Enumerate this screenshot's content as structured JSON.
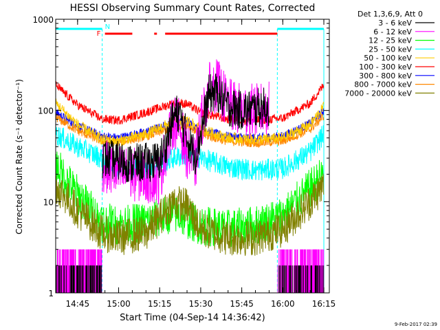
{
  "chart_data": {
    "type": "line",
    "title": "HESSI Observing Summary Count Rates, Corrected",
    "xlabel": "Start Time (04-Sep-14 14:36:42)",
    "ylabel": "Corrected Count Rate (s⁻¹ detector⁻¹)",
    "yscale": "log",
    "ylim": [
      1,
      1000
    ],
    "xlim": [
      "14:37",
      "16:17"
    ],
    "x_ticks": [
      "14:45",
      "15:00",
      "15:15",
      "15:30",
      "15:45",
      "16:00",
      "16:15"
    ],
    "y_ticks": [
      "1",
      "10",
      "100",
      "1000"
    ],
    "legend_title": "Det 1,3,6,9, Att 0",
    "legend_position": "top-right outside",
    "timestamp": "9-Feb-2017 02:39",
    "annotations": {
      "night_label": "N",
      "flare_label": "F"
    },
    "night_intervals": [
      [
        "14:37",
        "14:54"
      ],
      [
        "15:58",
        "16:15"
      ]
    ],
    "flare_intervals": [
      [
        "14:55",
        "15:05"
      ],
      [
        "15:13",
        "15:14"
      ],
      [
        "15:17",
        "15:58"
      ]
    ],
    "series": [
      {
        "name": "3 - 6 keV",
        "color": "#000000",
        "x": [
          "14:54",
          "15:00",
          "15:05",
          "15:10",
          "15:15",
          "15:17",
          "15:20",
          "15:22",
          "15:25",
          "15:28",
          "15:30",
          "15:33",
          "15:36",
          "15:40",
          "15:45",
          "15:50",
          "15:55"
        ],
        "values": [
          30,
          28,
          26,
          27,
          28,
          40,
          85,
          95,
          50,
          32,
          55,
          150,
          160,
          110,
          100,
          105,
          110
        ]
      },
      {
        "name": "6 - 12 keV",
        "color": "#ff00ff",
        "x": [
          "14:54",
          "15:00",
          "15:05",
          "15:10",
          "15:15",
          "15:17",
          "15:20",
          "15:22",
          "15:25",
          "15:28",
          "15:30",
          "15:33",
          "15:36",
          "15:40",
          "15:45",
          "15:50",
          "15:55"
        ],
        "values": [
          25,
          21,
          20,
          19,
          18,
          35,
          78,
          70,
          35,
          25,
          70,
          170,
          190,
          115,
          100,
          100,
          105
        ]
      },
      {
        "name": "12 - 25 keV",
        "color": "#00ff00",
        "x": [
          "14:37",
          "14:45",
          "14:54",
          "15:00",
          "15:10",
          "15:20",
          "15:30",
          "15:40",
          "15:50",
          "16:00",
          "16:10",
          "16:15"
        ],
        "values": [
          25,
          12,
          6,
          5.5,
          6,
          7.5,
          5.5,
          5,
          5.5,
          7,
          14,
          20
        ]
      },
      {
        "name": "25 - 50 keV",
        "color": "#00ffff",
        "x": [
          "14:37",
          "14:45",
          "14:54",
          "15:00",
          "15:10",
          "15:20",
          "15:25",
          "15:30",
          "15:40",
          "15:50",
          "16:00",
          "16:10",
          "16:15"
        ],
        "values": [
          55,
          40,
          30,
          23,
          23,
          30,
          33,
          30,
          24,
          22,
          23,
          35,
          55
        ]
      },
      {
        "name": "50 - 100 keV",
        "color": "#ffcc00",
        "x": [
          "14:37",
          "14:45",
          "14:54",
          "15:00",
          "15:10",
          "15:20",
          "15:25",
          "15:30",
          "15:40",
          "15:50",
          "16:00",
          "16:10",
          "16:15"
        ],
        "values": [
          120,
          70,
          48,
          46,
          55,
          75,
          78,
          62,
          50,
          48,
          50,
          70,
          110
        ]
      },
      {
        "name": "100 - 300 keV",
        "color": "#ff0000",
        "x": [
          "14:37",
          "14:45",
          "14:54",
          "15:00",
          "15:10",
          "15:20",
          "15:25",
          "15:30",
          "15:40",
          "15:50",
          "16:00",
          "16:10",
          "16:15"
        ],
        "values": [
          190,
          115,
          80,
          78,
          95,
          120,
          118,
          95,
          80,
          78,
          82,
          120,
          190
        ]
      },
      {
        "name": "300 - 800 keV",
        "color": "#0000ff",
        "x": [
          "14:37",
          "14:45",
          "14:54",
          "15:00",
          "15:10",
          "15:20",
          "15:25",
          "15:30",
          "15:40",
          "15:50",
          "16:00",
          "16:10",
          "16:15"
        ],
        "values": [
          95,
          68,
          52,
          50,
          58,
          72,
          75,
          60,
          52,
          50,
          52,
          72,
          100
        ]
      },
      {
        "name": "800 - 7000 keV",
        "color": "#ff8800",
        "x": [
          "14:37",
          "14:45",
          "14:54",
          "15:00",
          "15:10",
          "15:20",
          "15:25",
          "15:30",
          "15:40",
          "15:50",
          "16:00",
          "16:10",
          "16:15"
        ],
        "values": [
          85,
          60,
          46,
          45,
          52,
          65,
          70,
          55,
          46,
          44,
          46,
          62,
          88
        ]
      },
      {
        "name": "7000 - 20000 keV",
        "color": "#808000",
        "x": [
          "14:37",
          "14:45",
          "14:54",
          "15:00",
          "15:10",
          "15:20",
          "15:25",
          "15:30",
          "15:40",
          "15:50",
          "16:00",
          "16:10",
          "16:15"
        ],
        "values": [
          15,
          8,
          4.5,
          4,
          4.5,
          10,
          9,
          5,
          4,
          4,
          5,
          10,
          15
        ]
      }
    ]
  }
}
